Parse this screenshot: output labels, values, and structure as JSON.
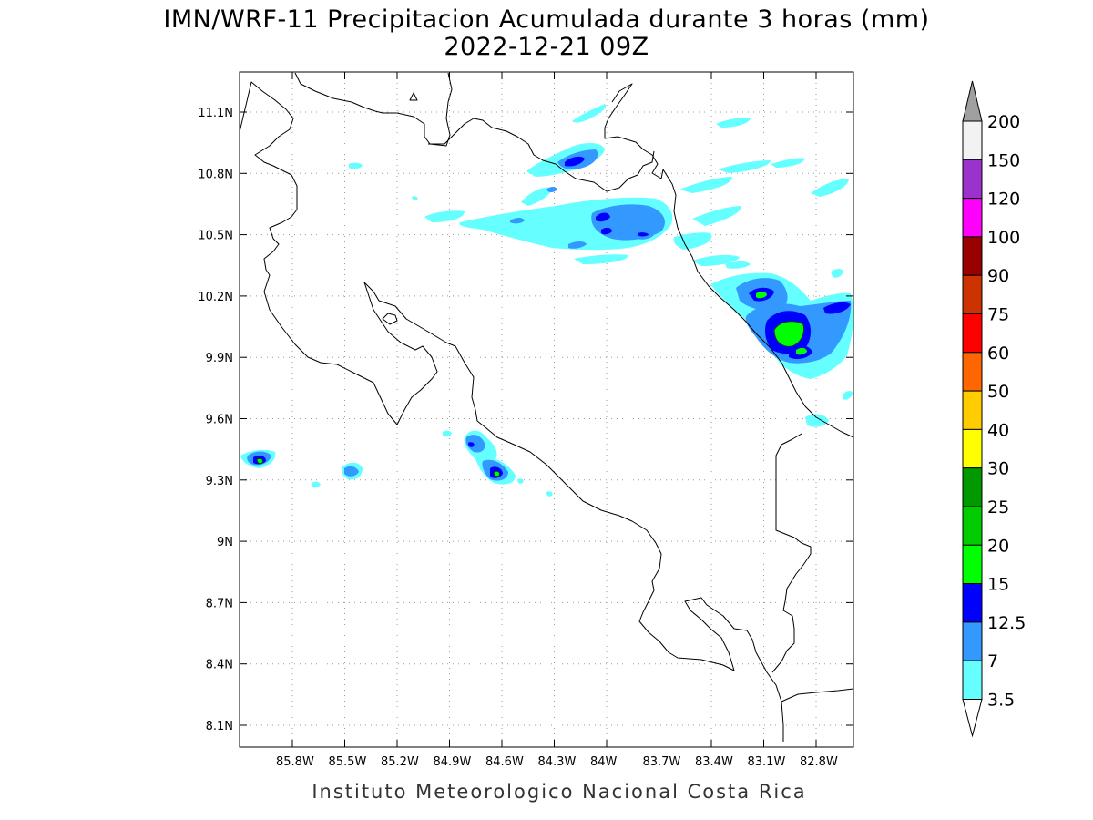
{
  "title_line1": "IMN/WRF-11 Precipitacion Acumulada durante 3 horas (mm)",
  "title_line2": "2022-12-21 09Z",
  "footer": "Instituto Meteorologico Nacional Costa Rica",
  "map": {
    "lon_range": [
      -86.0,
      -83.0
    ],
    "lat_range": [
      8.0,
      11.3
    ],
    "lon_ticks": [
      "85.8W",
      "85.5W",
      "85.2W",
      "84.9W",
      "84.6W",
      "84.3W",
      "84W",
      "83.7W",
      "83.4W",
      "83.1W",
      "82.8W"
    ],
    "lat_ticks": [
      "11.1N",
      "10.8N",
      "10.5N",
      "10.2N",
      "9.9N",
      "9.6N",
      "9.3N",
      "9N",
      "8.7N",
      "8.4N",
      "8.1N"
    ],
    "grid": "dotted"
  },
  "colorbar": {
    "levels": [
      "200",
      "150",
      "120",
      "100",
      "90",
      "75",
      "60",
      "50",
      "40",
      "30",
      "25",
      "20",
      "15",
      "12.5",
      "7",
      "3.5"
    ],
    "colors": [
      "#f2f2f2",
      "#9933cc",
      "#ff00ff",
      "#990000",
      "#cc3300",
      "#ff0000",
      "#ff6600",
      "#ffcc00",
      "#ffff00",
      "#009900",
      "#00cc00",
      "#00ff00",
      "#0000ff",
      "#3399ff",
      "#66ffff"
    ],
    "top_arrow_color": "#a0a0a0",
    "bottom_arrow_color": "#ffffff"
  },
  "colors": {
    "light_cyan": "#66ffff",
    "light_blue": "#3399ff",
    "blue": "#0000ff",
    "green": "#00ff00"
  }
}
